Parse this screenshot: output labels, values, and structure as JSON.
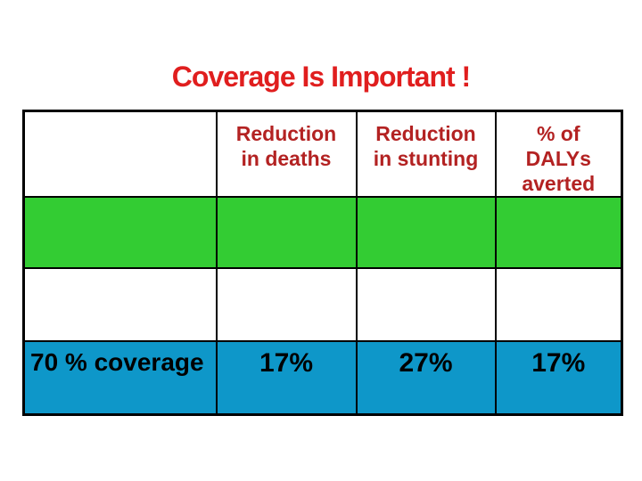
{
  "title": "Coverage Is Important !",
  "colors": {
    "background": "#ffffff",
    "title_red": "#e01e1e",
    "header_red": "#b32222",
    "green_row": "#33cc33",
    "blue_row": "#0e97c9",
    "border_black": "#000000",
    "text_black": "#000000"
  },
  "table": {
    "header": {
      "col0": "",
      "col1": "Reduction\nin deaths",
      "col2": "Reduction\nin stunting",
      "col3": "% of\nDALYs\naverted"
    },
    "coverage_row": {
      "label": "70 % coverage",
      "values": [
        "17%",
        "27%",
        "17%"
      ]
    }
  },
  "chart_data": {
    "type": "table",
    "title": "Coverage Is Important !",
    "columns": [
      "",
      "Reduction in deaths",
      "Reduction in stunting",
      "% of DALYs averted"
    ],
    "rows": [
      {
        "label": "",
        "values": [
          "",
          "",
          ""
        ],
        "row_color": "green"
      },
      {
        "label": "",
        "values": [
          "",
          "",
          ""
        ],
        "row_color": "white"
      },
      {
        "label": "70 % coverage",
        "values": [
          "17%",
          "27%",
          "17%"
        ],
        "row_color": "blue"
      }
    ]
  }
}
